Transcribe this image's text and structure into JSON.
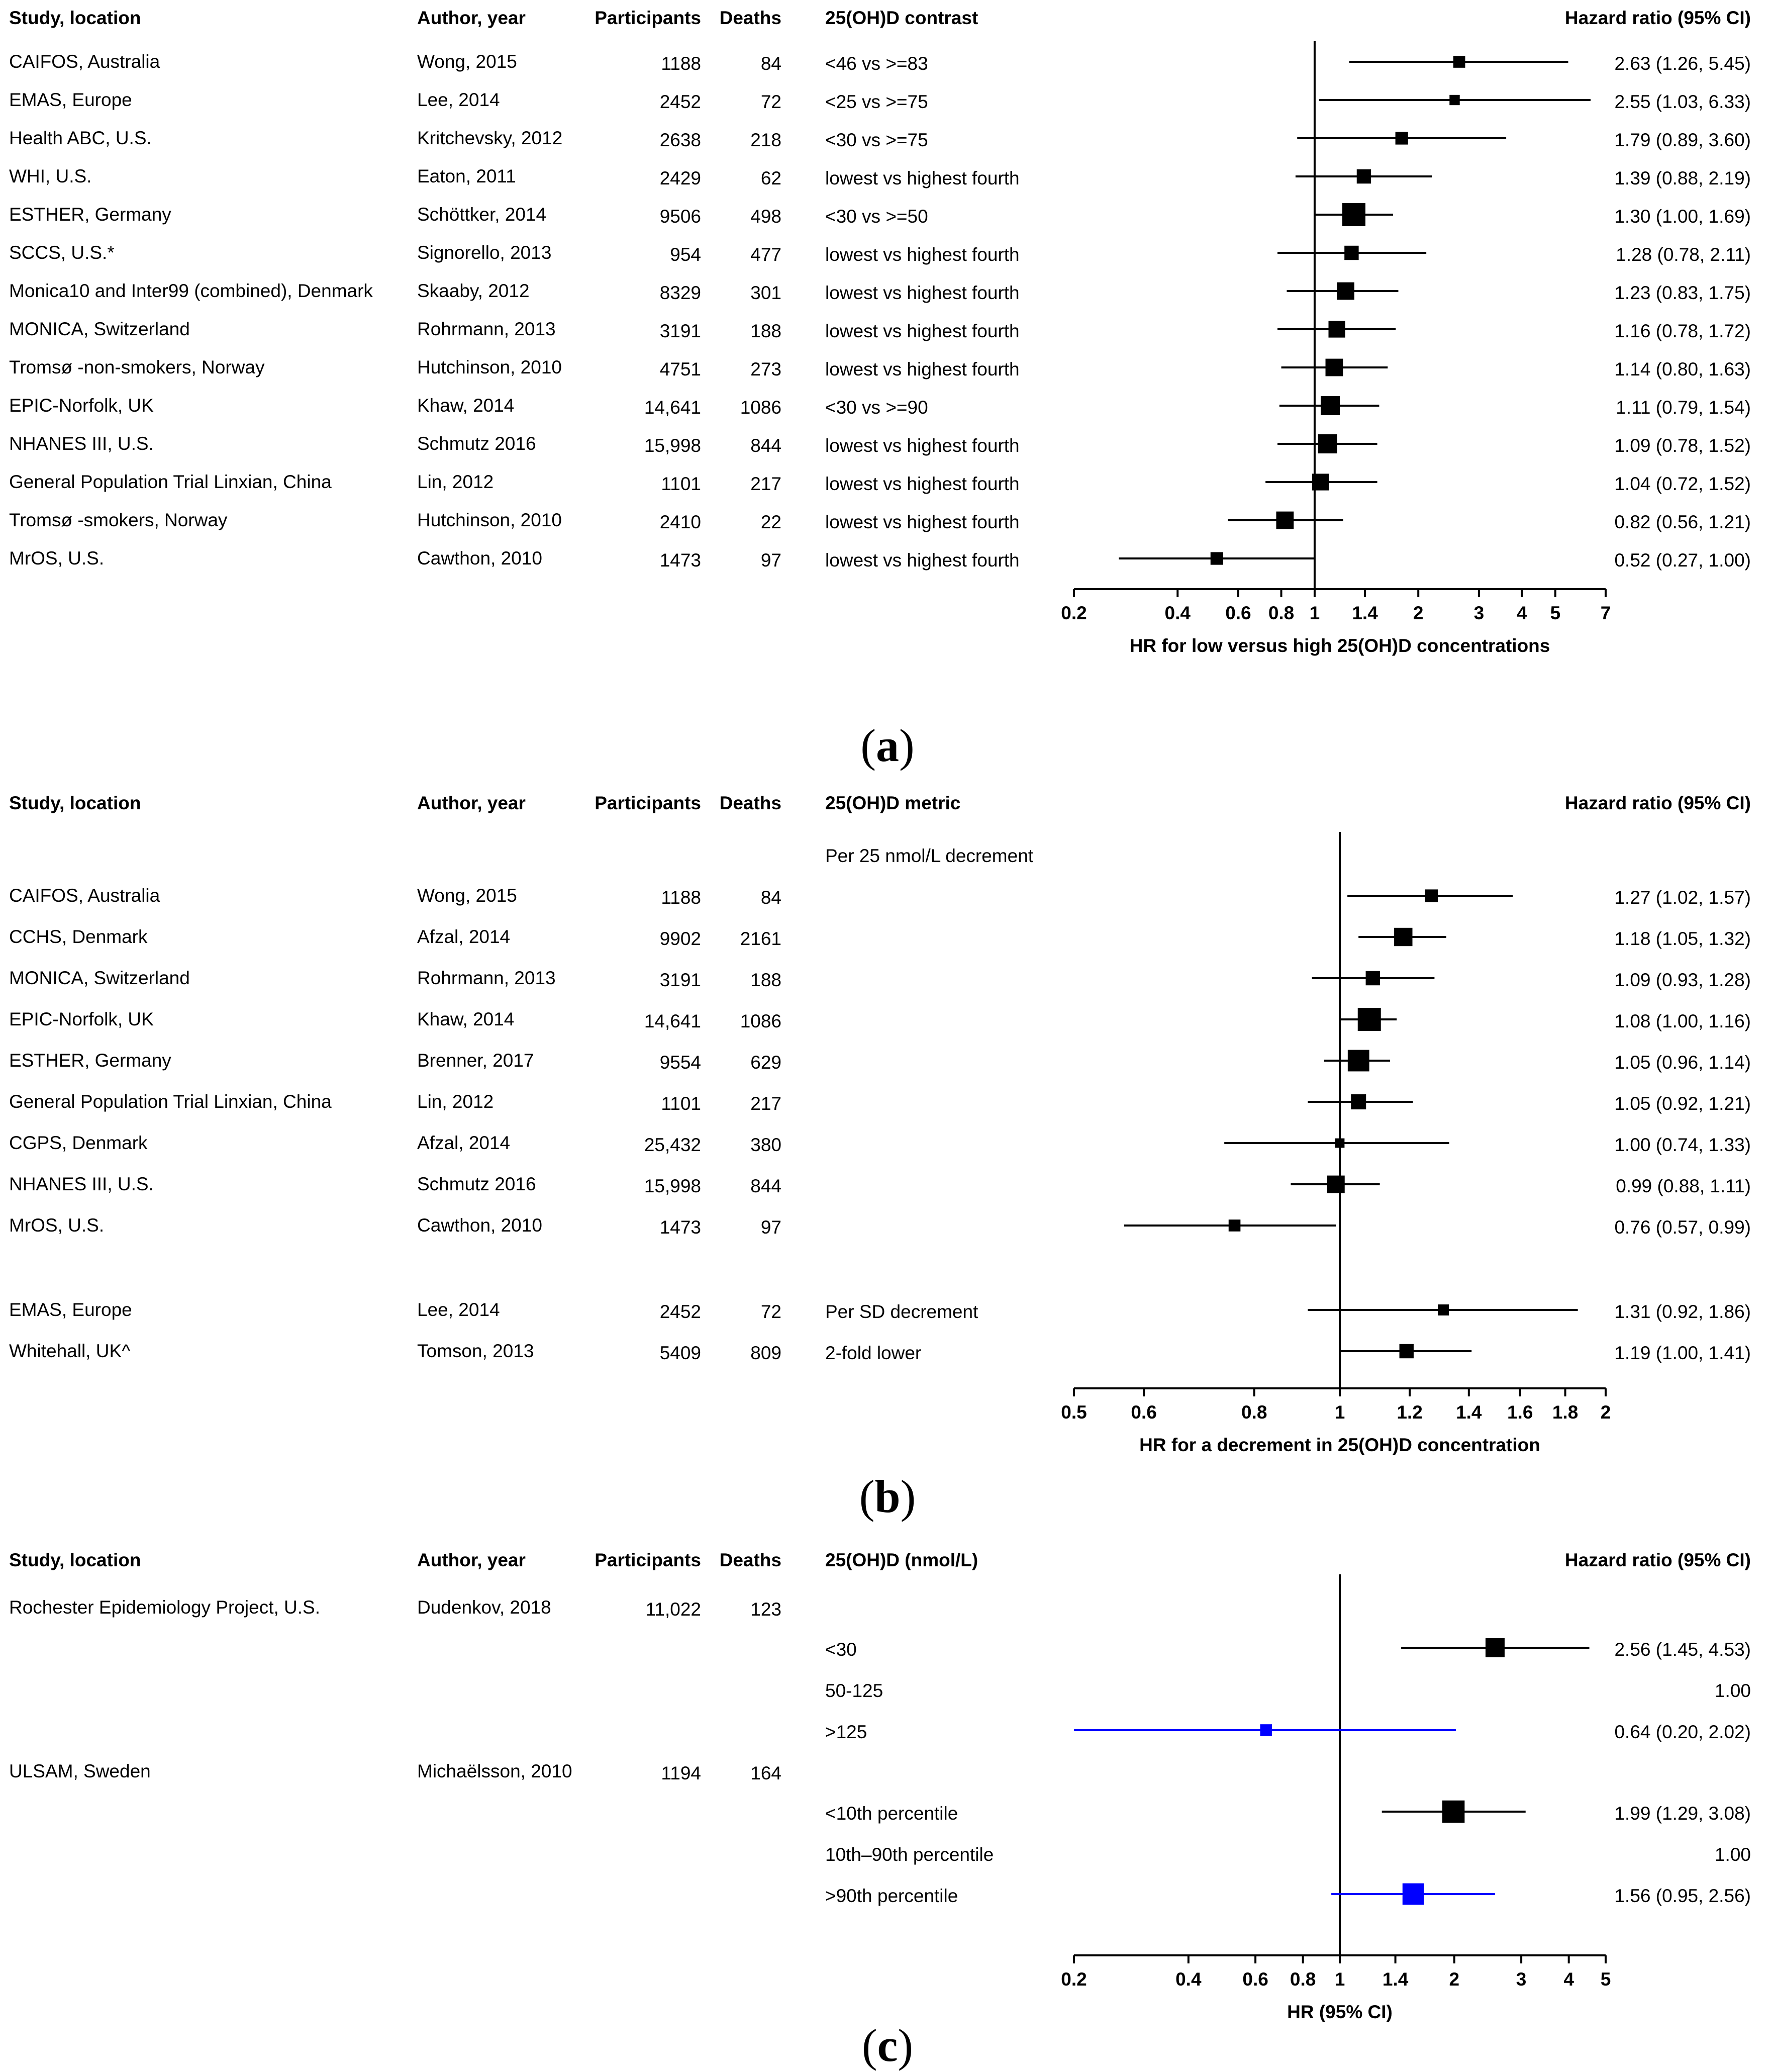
{
  "panels": {
    "a": {
      "label": "a"
    },
    "b": {
      "label": "b"
    },
    "c": {
      "label": "c"
    }
  },
  "colors": {
    "black": "#000000",
    "blue": "#0000ff"
  },
  "chart_data": [
    {
      "type": "forest",
      "headers": [
        "Study, location",
        "Author, year",
        "Participants",
        "Deaths",
        "25(OH)D contrast",
        "Hazard ratio (95% CI)"
      ],
      "xlabel": "HR for low versus high 25(OH)D concentrations",
      "scale": "log",
      "xlim": [
        0.2,
        7
      ],
      "ticks": [
        0.2,
        0.4,
        0.6,
        0.8,
        1,
        1.4,
        2,
        3,
        4,
        5,
        7
      ],
      "tick_labels": [
        "0.2",
        "0.4",
        "0.6",
        "0.8",
        "1",
        "1.4",
        "2",
        "3",
        "4",
        "5",
        "7"
      ],
      "reference": 1,
      "rows": [
        {
          "study": "CAIFOS, Australia",
          "author": "Wong, 2015",
          "participants": "1188",
          "deaths": "84",
          "contrast": "<46 vs >=83",
          "hr_text": "2.63 (1.26, 5.45)",
          "hr": 2.63,
          "lo": 1.26,
          "hi": 5.45,
          "weight": 0.3,
          "color": "#000000"
        },
        {
          "study": "EMAS, Europe",
          "author": "Lee, 2014",
          "participants": "2452",
          "deaths": "72",
          "contrast": "<25 vs >=75",
          "hr_text": "2.55 (1.03, 6.33)",
          "hr": 2.55,
          "lo": 1.03,
          "hi": 6.33,
          "weight": 0.2,
          "color": "#000000"
        },
        {
          "study": "Health ABC, U.S.",
          "author": "Kritchevsky, 2012",
          "participants": "2638",
          "deaths": "218",
          "contrast": "<30 vs >=75",
          "hr_text": "1.79 (0.89, 3.60)",
          "hr": 1.79,
          "lo": 0.89,
          "hi": 3.6,
          "weight": 0.35,
          "color": "#000000"
        },
        {
          "study": "WHI, U.S.",
          "author": "Eaton, 2011",
          "participants": "2429",
          "deaths": "62",
          "contrast": "lowest vs highest fourth",
          "hr_text": "1.39 (0.88, 2.19)",
          "hr": 1.39,
          "lo": 0.88,
          "hi": 2.19,
          "weight": 0.45,
          "color": "#000000"
        },
        {
          "study": "ESTHER, Germany",
          "author": "Schöttker, 2014",
          "participants": "9506",
          "deaths": "498",
          "contrast": "<30 vs >=50",
          "hr_text": "1.30 (1.00, 1.69)",
          "hr": 1.3,
          "lo": 1.0,
          "hi": 1.69,
          "weight": 1.0,
          "color": "#000000"
        },
        {
          "study": "SCCS, U.S.*",
          "author": "Signorello, 2013",
          "participants": "954",
          "deaths": "477",
          "contrast": "lowest vs highest fourth",
          "hr_text": "1.28 (0.78, 2.11)",
          "hr": 1.28,
          "lo": 0.78,
          "hi": 2.11,
          "weight": 0.45,
          "color": "#000000"
        },
        {
          "study": "Monica10 and Inter99 (combined), Denmark",
          "author": "Skaaby, 2012",
          "participants": "8329",
          "deaths": "301",
          "contrast": "lowest vs highest fourth",
          "hr_text": "1.23 (0.83, 1.75)",
          "hr": 1.23,
          "lo": 0.83,
          "hi": 1.75,
          "weight": 0.65,
          "color": "#000000"
        },
        {
          "study": "MONICA, Switzerland",
          "author": "Rohrmann, 2013",
          "participants": "3191",
          "deaths": "188",
          "contrast": "lowest vs highest fourth",
          "hr_text": "1.16 (0.78, 1.72)",
          "hr": 1.16,
          "lo": 0.78,
          "hi": 1.72,
          "weight": 0.6,
          "color": "#000000"
        },
        {
          "study": "Tromsø -non-smokers, Norway",
          "author": "Hutchinson, 2010",
          "participants": "4751",
          "deaths": "273",
          "contrast": "lowest vs highest fourth",
          "hr_text": "1.14 (0.80, 1.63)",
          "hr": 1.14,
          "lo": 0.8,
          "hi": 1.63,
          "weight": 0.65,
          "color": "#000000"
        },
        {
          "study": "EPIC-Norfolk, UK",
          "author": "Khaw, 2014",
          "participants": "14,641",
          "deaths": "1086",
          "contrast": "<30 vs >=90",
          "hr_text": "1.11 (0.79, 1.54)",
          "hr": 1.11,
          "lo": 0.79,
          "hi": 1.54,
          "weight": 0.75,
          "color": "#000000"
        },
        {
          "study": "NHANES III, U.S.",
          "author": "Schmutz 2016",
          "participants": "15,998",
          "deaths": "844",
          "contrast": "lowest vs highest fourth",
          "hr_text": "1.09 (0.78, 1.52)",
          "hr": 1.09,
          "lo": 0.78,
          "hi": 1.52,
          "weight": 0.75,
          "color": "#000000"
        },
        {
          "study": "General Population Trial Linxian, China",
          "author": "Lin, 2012",
          "participants": "1101",
          "deaths": "217",
          "contrast": "lowest vs highest fourth",
          "hr_text": "1.04 (0.72, 1.52)",
          "hr": 1.04,
          "lo": 0.72,
          "hi": 1.52,
          "weight": 0.6,
          "color": "#000000"
        },
        {
          "study": "Tromsø -smokers, Norway",
          "author": "Hutchinson, 2010",
          "participants": "2410",
          "deaths": "22",
          "contrast": "lowest vs highest fourth",
          "hr_text": "0.82 (0.56, 1.21)",
          "hr": 0.82,
          "lo": 0.56,
          "hi": 1.21,
          "weight": 0.65,
          "color": "#000000"
        },
        {
          "study": "MrOS, U.S.",
          "author": "Cawthon, 2010",
          "participants": "1473",
          "deaths": "97",
          "contrast": "lowest vs highest fourth",
          "hr_text": "0.52 (0.27, 1.00)",
          "hr": 0.52,
          "lo": 0.27,
          "hi": 1.0,
          "weight": 0.35,
          "color": "#000000"
        }
      ]
    },
    {
      "type": "forest",
      "headers": [
        "Study, location",
        "Author, year",
        "Participants",
        "Deaths",
        "25(OH)D metric",
        "Hazard ratio (95% CI)"
      ],
      "xlabel": "HR for a decrement in 25(OH)D concentration",
      "scale": "log",
      "xlim": [
        0.5,
        2
      ],
      "ticks": [
        0.5,
        0.6,
        0.8,
        1,
        1.2,
        1.4,
        1.6,
        1.8,
        2
      ],
      "tick_labels": [
        "0.5",
        "0.6",
        "0.8",
        "1",
        "1.2",
        "1.4",
        "1.6",
        "1.8",
        "2"
      ],
      "reference": 1,
      "group_label": "Per 25 nmol/L decrement",
      "rows": [
        {
          "study": "CAIFOS, Australia",
          "author": "Wong, 2015",
          "participants": "1188",
          "deaths": "84",
          "contrast": "",
          "hr_text": "1.27 (1.02, 1.57)",
          "hr": 1.27,
          "lo": 1.02,
          "hi": 1.57,
          "weight": 0.35,
          "color": "#000000"
        },
        {
          "study": "CCHS, Denmark",
          "author": "Afzal, 2014",
          "participants": "9902",
          "deaths": "2161",
          "contrast": "",
          "hr_text": "1.18 (1.05, 1.32)",
          "hr": 1.18,
          "lo": 1.05,
          "hi": 1.32,
          "weight": 0.7,
          "color": "#000000"
        },
        {
          "study": "MONICA, Switzerland",
          "author": "Rohrmann, 2013",
          "participants": "3191",
          "deaths": "188",
          "contrast": "",
          "hr_text": "1.09 (0.93, 1.28)",
          "hr": 1.09,
          "lo": 0.93,
          "hi": 1.28,
          "weight": 0.45,
          "color": "#000000"
        },
        {
          "study": "EPIC-Norfolk, UK",
          "author": "Khaw, 2014",
          "participants": "14,641",
          "deaths": "1086",
          "contrast": "",
          "hr_text": "1.08 (1.00, 1.16)",
          "hr": 1.08,
          "lo": 1.0,
          "hi": 1.16,
          "weight": 1.0,
          "color": "#000000"
        },
        {
          "study": "ESTHER, Germany",
          "author": "Brenner, 2017",
          "participants": "9554",
          "deaths": "629",
          "contrast": "",
          "hr_text": "1.05 (0.96, 1.14)",
          "hr": 1.05,
          "lo": 0.96,
          "hi": 1.14,
          "weight": 0.9,
          "color": "#000000"
        },
        {
          "study": "General Population Trial Linxian, China",
          "author": "Lin, 2012",
          "participants": "1101",
          "deaths": "217",
          "contrast": "",
          "hr_text": "1.05 (0.92, 1.21)",
          "hr": 1.05,
          "lo": 0.92,
          "hi": 1.21,
          "weight": 0.5,
          "color": "#000000"
        },
        {
          "study": "CGPS, Denmark",
          "author": "Afzal, 2014",
          "participants": "25,432",
          "deaths": "380",
          "contrast": "",
          "hr_text": "1.00 (0.74, 1.33)",
          "hr": 1.0,
          "lo": 0.74,
          "hi": 1.33,
          "weight": 0.15,
          "color": "#000000"
        },
        {
          "study": "NHANES III, U.S.",
          "author": "Schmutz 2016",
          "participants": "15,998",
          "deaths": "844",
          "contrast": "",
          "hr_text": "0.99 (0.88, 1.11)",
          "hr": 0.99,
          "lo": 0.88,
          "hi": 1.11,
          "weight": 0.65,
          "color": "#000000"
        },
        {
          "study": "MrOS, U.S.",
          "author": "Cawthon, 2010",
          "participants": "1473",
          "deaths": "97",
          "contrast": "",
          "hr_text": "0.76 (0.57, 0.99)",
          "hr": 0.76,
          "lo": 0.57,
          "hi": 0.99,
          "weight": 0.3,
          "color": "#000000"
        },
        {
          "study": "EMAS, Europe",
          "author": "Lee, 2014",
          "participants": "2452",
          "deaths": "72",
          "contrast": "Per SD decrement",
          "hr_text": "1.31 (0.92, 1.86)",
          "hr": 1.31,
          "lo": 0.92,
          "hi": 1.86,
          "weight": 0.25,
          "color": "#000000"
        },
        {
          "study": "Whitehall, UK^",
          "author": "Tomson, 2013",
          "participants": "5409",
          "deaths": "809",
          "contrast": "2-fold lower",
          "hr_text": "1.19 (1.00, 1.41)",
          "hr": 1.19,
          "lo": 1.0,
          "hi": 1.41,
          "weight": 0.45,
          "color": "#000000"
        }
      ]
    },
    {
      "type": "forest",
      "headers": [
        "Study, location",
        "Author, year",
        "Participants",
        "Deaths",
        "25(OH)D (nmol/L)",
        "Hazard ratio (95% CI)"
      ],
      "xlabel": "HR (95% CI)",
      "scale": "log",
      "xlim": [
        0.2,
        5
      ],
      "ticks": [
        0.2,
        0.4,
        0.6,
        0.8,
        1,
        1.4,
        2,
        3,
        4,
        5
      ],
      "tick_labels": [
        "0.2",
        "0.4",
        "0.6",
        "0.8",
        "1",
        "1.4",
        "2",
        "3",
        "4",
        "5"
      ],
      "reference": 1,
      "studies": [
        {
          "study": "Rochester Epidemiology Project, U.S.",
          "author": "Dudenkov, 2018",
          "participants": "11,022",
          "deaths": "123"
        },
        {
          "study": "ULSAM, Sweden",
          "author": "Michaëlsson, 2010",
          "participants": "1194",
          "deaths": "164"
        }
      ],
      "rows": [
        {
          "contrast": "<30",
          "hr_text": "2.56 (1.45, 4.53)",
          "hr": 2.56,
          "lo": 1.45,
          "hi": 4.53,
          "weight": 0.75,
          "color": "#000000"
        },
        {
          "contrast": "50-125",
          "hr_text": "1.00",
          "hr": null,
          "lo": null,
          "hi": null,
          "weight": 0,
          "color": "#000000"
        },
        {
          "contrast": ">125",
          "hr_text": "0.64 (0.20, 2.02)",
          "hr": 0.64,
          "lo": 0.2,
          "hi": 2.02,
          "weight": 0.3,
          "color": "#0000ff"
        },
        {
          "contrast": "<10th percentile",
          "hr_text": "1.99 (1.29, 3.08)",
          "hr": 1.99,
          "lo": 1.29,
          "hi": 3.08,
          "weight": 0.95,
          "color": "#000000"
        },
        {
          "contrast": "10th–90th percentile",
          "hr_text": "1.00",
          "hr": null,
          "lo": null,
          "hi": null,
          "weight": 0,
          "color": "#000000"
        },
        {
          "contrast": ">90th percentile",
          "hr_text": "1.56 (0.95, 2.56)",
          "hr": 1.56,
          "lo": 0.95,
          "hi": 2.56,
          "weight": 0.9,
          "color": "#0000ff"
        }
      ]
    }
  ]
}
